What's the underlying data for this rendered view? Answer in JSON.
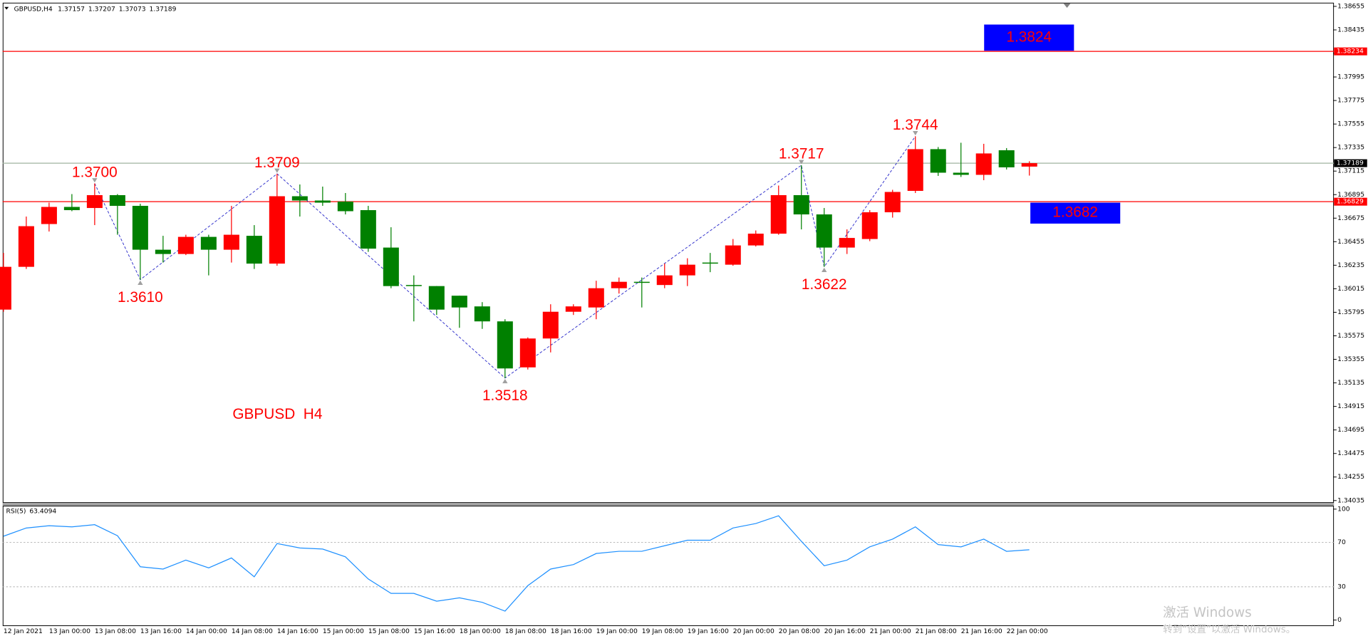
{
  "chart_data": [
    {
      "type": "candlestick",
      "symbol": "GBPUSD,H4",
      "annotation": "GBPUSD  H4",
      "categories": [
        "12 Jan 2021",
        null,
        "13 Jan 00:00",
        null,
        "13 Jan 08:00",
        null,
        "13 Jan 16:00",
        null,
        "14 Jan 00:00",
        null,
        "14 Jan 08:00",
        null,
        "14 Jan 16:00",
        null,
        "15 Jan 00:00",
        null,
        "15 Jan 08:00",
        null,
        "15 Jan 16:00",
        null,
        "18 Jan 00:00",
        null,
        "18 Jan 08:00",
        null,
        "18 Jan 16:00",
        null,
        "19 Jan 00:00",
        null,
        "19 Jan 08:00",
        null,
        "19 Jan 16:00",
        null,
        "20 Jan 00:00",
        null,
        "20 Jan 08:00",
        null,
        "20 Jan 16:00",
        null,
        "21 Jan 00:00",
        null,
        "21 Jan 08:00",
        null,
        "21 Jan 16:00",
        null,
        "22 Jan 00:00",
        null
      ],
      "open": [
        1.3582,
        1.3622,
        1.3662,
        1.3678,
        1.3677,
        1.3689,
        1.3679,
        1.3638,
        1.3634,
        1.365,
        1.3638,
        1.3651,
        1.3625,
        1.3688,
        1.3684,
        1.3683,
        1.3675,
        1.364,
        1.3605,
        1.3604,
        1.3595,
        1.3585,
        1.3571,
        1.3528,
        1.3555,
        1.358,
        1.3584,
        1.3602,
        1.3608,
        1.3605,
        1.3614,
        1.3626,
        1.3624,
        1.3642,
        1.3653,
        1.3689,
        1.3671,
        1.364,
        1.3648,
        1.3673,
        1.3693,
        1.3732,
        1.371,
        1.3708,
        1.3731,
        1.37157
      ],
      "high": [
        1.3635,
        1.3669,
        1.3682,
        1.369,
        1.37,
        1.369,
        1.3681,
        1.3651,
        1.3652,
        1.3652,
        1.3679,
        1.3661,
        1.3709,
        1.3699,
        1.3697,
        1.3691,
        1.3679,
        1.3659,
        1.3614,
        1.3604,
        1.3595,
        1.3589,
        1.3573,
        1.3556,
        1.3587,
        1.3587,
        1.3609,
        1.3612,
        1.3612,
        1.3625,
        1.363,
        1.3635,
        1.3648,
        1.3656,
        1.3698,
        1.3717,
        1.3677,
        1.3657,
        1.3675,
        1.3694,
        1.3744,
        1.3734,
        1.3738,
        1.3737,
        1.3733,
        1.37207
      ],
      "low": [
        1.358,
        1.362,
        1.3655,
        1.3674,
        1.3661,
        1.3652,
        1.361,
        1.3626,
        1.3633,
        1.3614,
        1.3626,
        1.362,
        1.3623,
        1.3669,
        1.3679,
        1.3671,
        1.3636,
        1.3602,
        1.3571,
        1.3577,
        1.3565,
        1.3564,
        1.3518,
        1.3526,
        1.3542,
        1.3577,
        1.3573,
        1.3597,
        1.3584,
        1.3602,
        1.3604,
        1.3617,
        1.3623,
        1.3641,
        1.3652,
        1.3657,
        1.3622,
        1.3634,
        1.3646,
        1.3668,
        1.3691,
        1.3707,
        1.3706,
        1.3703,
        1.3713,
        1.37073
      ],
      "close": [
        1.3622,
        1.366,
        1.3678,
        1.3675,
        1.3689,
        1.3679,
        1.3638,
        1.3634,
        1.365,
        1.3638,
        1.3652,
        1.3625,
        1.3688,
        1.3684,
        1.3682,
        1.3674,
        1.3639,
        1.3604,
        1.3604,
        1.3582,
        1.3584,
        1.3571,
        1.3527,
        1.3555,
        1.358,
        1.3585,
        1.3602,
        1.3608,
        1.3607,
        1.3614,
        1.3624,
        1.3625,
        1.3642,
        1.3653,
        1.3689,
        1.3671,
        1.364,
        1.3649,
        1.3673,
        1.3692,
        1.3732,
        1.371,
        1.3708,
        1.3728,
        1.3715,
        1.37189
      ],
      "up_color": "#ff0000",
      "down_color": "#008000",
      "ylim": [
        1.3402,
        1.3869
      ],
      "yticks": [
        1.38655,
        1.38435,
        1.38215,
        1.37995,
        1.37775,
        1.37555,
        1.37335,
        1.37115,
        1.36895,
        1.36675,
        1.36455,
        1.36235,
        1.36015,
        1.35795,
        1.35575,
        1.35355,
        1.35135,
        1.34915,
        1.34695,
        1.34475,
        1.34255,
        1.34035
      ],
      "hlines": [
        {
          "value": 1.38234,
          "color": "#ff0000"
        },
        {
          "value": 1.36829,
          "color": "#ff0000"
        }
      ],
      "bid_color": "#9fb39f",
      "pivots": [
        {
          "value": 1.37,
          "label": "1.3700"
        },
        {
          "value": 1.361,
          "label": "1.3610"
        },
        {
          "value": 1.3709,
          "label": "1.3709"
        },
        {
          "value": 1.3518,
          "label": "1.3518"
        },
        {
          "value": 1.3717,
          "label": "1.3717"
        },
        {
          "value": 1.3622,
          "label": "1.3622"
        },
        {
          "value": 1.3744,
          "label": "1.3744"
        }
      ],
      "zigzag_color": "#3333cc",
      "boxes": [
        {
          "value": 1.3824,
          "label": "1.3824"
        },
        {
          "value": 1.3682,
          "label": "1.3682"
        }
      ],
      "box_color": "#0000ff"
    },
    {
      "type": "line",
      "name": "RSI(5)",
      "color": "#1e90ff",
      "values": [
        75.6,
        83,
        85,
        84,
        86,
        76,
        48,
        46,
        54,
        47,
        56,
        39,
        69,
        65,
        64,
        57,
        37,
        24,
        24,
        17,
        20,
        16,
        8,
        31,
        46,
        50,
        60,
        62,
        62,
        67,
        72,
        72,
        83,
        87,
        94,
        71,
        49,
        54,
        66,
        73,
        84,
        68,
        66,
        73,
        62,
        63.4094
      ],
      "ylim": [
        0,
        100
      ],
      "yticks": [
        0,
        30,
        70,
        100
      ]
    }
  ],
  "watermark": {
    "title": "激活 Windows",
    "subtitle": "转到“设置”以激活 Windows。"
  }
}
